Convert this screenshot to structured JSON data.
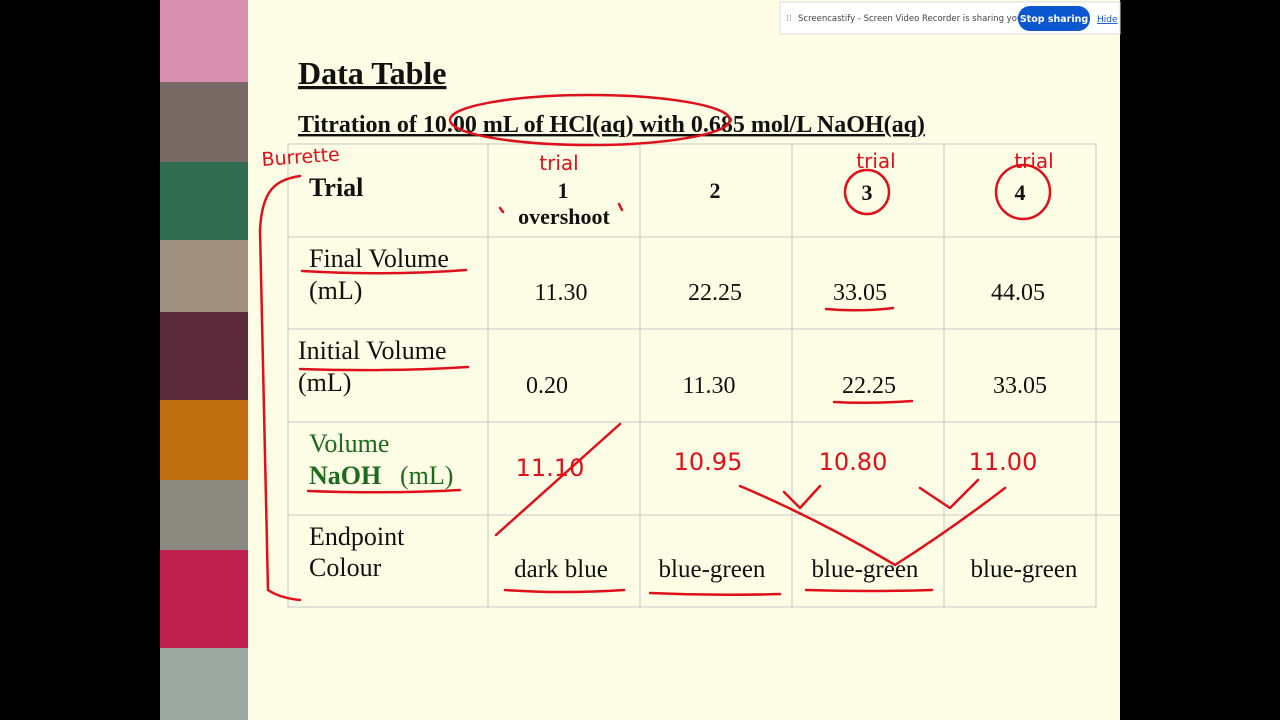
{
  "screen_share_bar": {
    "message": "Screencastify - Screen Video Recorder is sharing your screen.",
    "stop_button": "Stop sharing",
    "hide_link": "Hide"
  },
  "slide": {
    "title": "Data Table",
    "subtitle": "Titration of 10.00 mL of HCl(aq) with 0.685 mol/L NaOH(aq)",
    "table": {
      "header": [
        [
          "Trial"
        ],
        [
          "1",
          "overshoot"
        ],
        [
          "2"
        ],
        [
          "3"
        ],
        [
          "4"
        ]
      ],
      "rows": [
        {
          "label": [
            "Final Volume",
            "(mL)"
          ],
          "cells": [
            "11.30",
            "22.25",
            "33.05",
            "44.05"
          ]
        },
        {
          "label": [
            "Initial Volume",
            "(mL)"
          ],
          "cells": [
            "0.20",
            "11.30",
            "22.25",
            "33.05"
          ]
        },
        {
          "label": [
            "Volume",
            "NaOH",
            "(mL)"
          ]
        },
        {
          "label": [
            "Endpoint",
            "Colour"
          ],
          "cells": [
            "dark blue",
            "blue-green",
            "blue-green",
            "blue-green"
          ]
        }
      ]
    }
  },
  "handwriting": {
    "burrette": "Burrette",
    "trial_notes": [
      "trial",
      "trial",
      "trial"
    ],
    "naoh_volumes": [
      "11.10",
      "10.95",
      "10.80",
      "11.00"
    ]
  }
}
